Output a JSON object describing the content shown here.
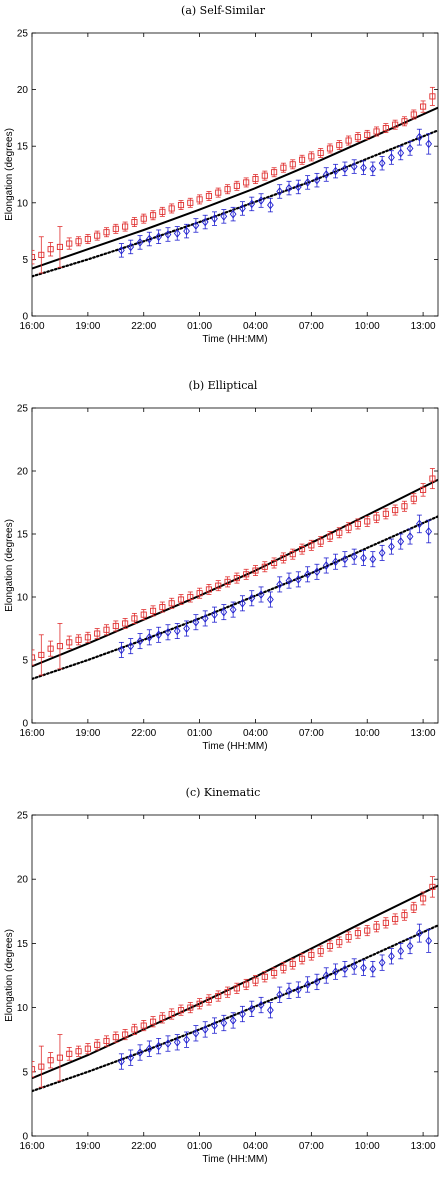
{
  "chart_data": [
    {
      "type": "scatter",
      "title": "(a) Self-Similar",
      "xlabel": "Time (HH:MM)",
      "ylabel": "Elongation (degrees)",
      "x_tick_labels": [
        "16:00",
        "19:00",
        "22:00",
        "01:00",
        "04:00",
        "07:00",
        "10:00",
        "13:00"
      ],
      "x_tick_hours": [
        0,
        3,
        6,
        9,
        12,
        15,
        18,
        21
      ],
      "y_ticks": [
        0,
        5,
        10,
        15,
        20,
        25
      ],
      "xlim_hours": [
        0,
        21.8
      ],
      "ylim": [
        0,
        25
      ],
      "grid": false,
      "colors": {
        "red": "#e03030",
        "blue": "#2020d0",
        "fit": "#000000"
      },
      "series": [
        {
          "marker": "square",
          "color": "#e03030",
          "x": [
            0,
            0.5,
            1,
            1.5,
            2,
            2.5,
            3,
            3.5,
            4,
            4.5,
            5,
            5.5,
            6,
            6.5,
            7,
            7.5,
            8,
            8.5,
            9,
            9.5,
            10,
            10.5,
            11,
            11.5,
            12,
            12.5,
            13,
            13.5,
            14,
            14.5,
            15,
            15.5,
            16,
            16.5,
            17,
            17.5,
            18,
            18.5,
            19,
            19.5,
            20,
            20.5,
            21,
            21.5
          ],
          "y": [
            5.2,
            5.4,
            5.9,
            6.1,
            6.4,
            6.6,
            6.8,
            7.1,
            7.4,
            7.7,
            7.9,
            8.3,
            8.6,
            8.9,
            9.2,
            9.5,
            9.8,
            10.0,
            10.3,
            10.6,
            10.9,
            11.2,
            11.5,
            11.8,
            12.1,
            12.4,
            12.7,
            13.1,
            13.4,
            13.8,
            14.1,
            14.4,
            14.8,
            15.1,
            15.5,
            15.8,
            16.0,
            16.3,
            16.6,
            16.9,
            17.2,
            17.8,
            18.5,
            19.4
          ],
          "err": [
            0.6,
            1.6,
            0.6,
            1.8,
            0.5,
            0.4,
            0.4,
            0.4,
            0.4,
            0.4,
            0.4,
            0.4,
            0.4,
            0.4,
            0.4,
            0.4,
            0.4,
            0.4,
            0.4,
            0.4,
            0.4,
            0.4,
            0.4,
            0.4,
            0.4,
            0.4,
            0.4,
            0.4,
            0.4,
            0.4,
            0.4,
            0.4,
            0.4,
            0.4,
            0.4,
            0.4,
            0.4,
            0.4,
            0.4,
            0.4,
            0.4,
            0.4,
            0.5,
            0.8
          ]
        },
        {
          "marker": "diamond",
          "color": "#2020d0",
          "x": [
            4.8,
            5.3,
            5.8,
            6.3,
            6.8,
            7.3,
            7.8,
            8.3,
            8.8,
            9.3,
            9.8,
            10.3,
            10.8,
            11.3,
            11.8,
            12.3,
            12.8,
            13.3,
            13.8,
            14.3,
            14.8,
            15.3,
            15.8,
            16.3,
            16.8,
            17.3,
            17.8,
            18.3,
            18.8,
            19.3,
            19.8,
            20.3,
            20.8,
            21.3
          ],
          "y": [
            5.8,
            6.1,
            6.5,
            6.8,
            7.0,
            7.2,
            7.3,
            7.5,
            8.0,
            8.3,
            8.6,
            8.8,
            9.0,
            9.5,
            9.9,
            10.2,
            9.8,
            11.0,
            11.3,
            11.4,
            11.8,
            12.0,
            12.5,
            12.8,
            13.0,
            13.2,
            13.1,
            13.0,
            13.5,
            14.0,
            14.4,
            14.8,
            15.8,
            15.2
          ],
          "err": [
            0.6,
            0.6,
            0.6,
            0.6,
            0.6,
            0.6,
            0.6,
            0.6,
            0.6,
            0.6,
            0.6,
            0.6,
            0.6,
            0.6,
            0.6,
            0.6,
            0.6,
            0.6,
            0.6,
            0.6,
            0.6,
            0.6,
            0.6,
            0.6,
            0.6,
            0.6,
            0.6,
            0.6,
            0.6,
            0.6,
            0.6,
            0.6,
            0.7,
            0.9
          ]
        }
      ],
      "fits": [
        {
          "style": "solid",
          "x": [
            0,
            3,
            6,
            9,
            12,
            15,
            18,
            21.8
          ],
          "y": [
            4.2,
            5.9,
            7.6,
            9.4,
            11.3,
            13.4,
            15.6,
            18.4
          ]
        },
        {
          "style": "dotted",
          "x": [
            0,
            3,
            6,
            9,
            12,
            15,
            18,
            21.8
          ],
          "y": [
            3.5,
            5.0,
            6.6,
            8.3,
            10.1,
            11.9,
            13.9,
            16.4
          ]
        }
      ]
    },
    {
      "type": "scatter",
      "title": "(b) Elliptical",
      "xlabel": "Time (HH:MM)",
      "ylabel": "Elongation (degrees)",
      "x_tick_labels": [
        "16:00",
        "19:00",
        "22:00",
        "01:00",
        "04:00",
        "07:00",
        "10:00",
        "13:00"
      ],
      "x_tick_hours": [
        0,
        3,
        6,
        9,
        12,
        15,
        18,
        21
      ],
      "y_ticks": [
        0,
        5,
        10,
        15,
        20,
        25
      ],
      "xlim_hours": [
        0,
        21.8
      ],
      "ylim": [
        0,
        25
      ],
      "grid": false,
      "colors": {
        "red": "#e03030",
        "blue": "#2020d0",
        "fit": "#000000"
      },
      "series": [
        {
          "marker": "square",
          "color": "#e03030",
          "x": [
            0,
            0.5,
            1,
            1.5,
            2,
            2.5,
            3,
            3.5,
            4,
            4.5,
            5,
            5.5,
            6,
            6.5,
            7,
            7.5,
            8,
            8.5,
            9,
            9.5,
            10,
            10.5,
            11,
            11.5,
            12,
            12.5,
            13,
            13.5,
            14,
            14.5,
            15,
            15.5,
            16,
            16.5,
            17,
            17.5,
            18,
            18.5,
            19,
            19.5,
            20,
            20.5,
            21,
            21.5
          ],
          "y": [
            5.2,
            5.4,
            5.9,
            6.1,
            6.4,
            6.6,
            6.8,
            7.1,
            7.4,
            7.7,
            7.9,
            8.3,
            8.6,
            8.9,
            9.2,
            9.5,
            9.8,
            10.0,
            10.3,
            10.6,
            10.9,
            11.2,
            11.5,
            11.8,
            12.1,
            12.4,
            12.7,
            13.1,
            13.4,
            13.8,
            14.1,
            14.4,
            14.8,
            15.1,
            15.5,
            15.8,
            16.0,
            16.3,
            16.6,
            16.9,
            17.2,
            17.8,
            18.5,
            19.4
          ],
          "err": [
            0.6,
            1.6,
            0.6,
            1.8,
            0.5,
            0.4,
            0.4,
            0.4,
            0.4,
            0.4,
            0.4,
            0.4,
            0.4,
            0.4,
            0.4,
            0.4,
            0.4,
            0.4,
            0.4,
            0.4,
            0.4,
            0.4,
            0.4,
            0.4,
            0.4,
            0.4,
            0.4,
            0.4,
            0.4,
            0.4,
            0.4,
            0.4,
            0.4,
            0.4,
            0.4,
            0.4,
            0.4,
            0.4,
            0.4,
            0.4,
            0.4,
            0.4,
            0.5,
            0.8
          ]
        },
        {
          "marker": "diamond",
          "color": "#2020d0",
          "x": [
            4.8,
            5.3,
            5.8,
            6.3,
            6.8,
            7.3,
            7.8,
            8.3,
            8.8,
            9.3,
            9.8,
            10.3,
            10.8,
            11.3,
            11.8,
            12.3,
            12.8,
            13.3,
            13.8,
            14.3,
            14.8,
            15.3,
            15.8,
            16.3,
            16.8,
            17.3,
            17.8,
            18.3,
            18.8,
            19.3,
            19.8,
            20.3,
            20.8,
            21.3
          ],
          "y": [
            5.8,
            6.1,
            6.5,
            6.8,
            7.0,
            7.2,
            7.3,
            7.5,
            8.0,
            8.3,
            8.6,
            8.8,
            9.0,
            9.5,
            9.9,
            10.2,
            9.8,
            11.0,
            11.3,
            11.4,
            11.8,
            12.0,
            12.5,
            12.8,
            13.0,
            13.2,
            13.1,
            13.0,
            13.5,
            14.0,
            14.4,
            14.8,
            15.8,
            15.2
          ],
          "err": [
            0.6,
            0.6,
            0.6,
            0.6,
            0.6,
            0.6,
            0.6,
            0.6,
            0.6,
            0.6,
            0.6,
            0.6,
            0.6,
            0.6,
            0.6,
            0.6,
            0.6,
            0.6,
            0.6,
            0.6,
            0.6,
            0.6,
            0.6,
            0.6,
            0.6,
            0.6,
            0.6,
            0.6,
            0.6,
            0.6,
            0.6,
            0.6,
            0.7,
            0.9
          ]
        }
      ],
      "fits": [
        {
          "style": "solid",
          "x": [
            0,
            3,
            6,
            9,
            12,
            15,
            18,
            21.8
          ],
          "y": [
            4.5,
            6.3,
            8.2,
            10.1,
            12.1,
            14.3,
            16.5,
            19.3
          ]
        },
        {
          "style": "dotted",
          "x": [
            0,
            3,
            6,
            9,
            12,
            15,
            18,
            21.8
          ],
          "y": [
            3.5,
            5.0,
            6.6,
            8.3,
            10.1,
            11.9,
            13.9,
            16.4
          ]
        }
      ]
    },
    {
      "type": "scatter",
      "title": "(c) Kinematic",
      "xlabel": "Time (HH:MM)",
      "ylabel": "Elongation (degrees)",
      "x_tick_labels": [
        "16:00",
        "19:00",
        "22:00",
        "01:00",
        "04:00",
        "07:00",
        "10:00",
        "13:00"
      ],
      "x_tick_hours": [
        0,
        3,
        6,
        9,
        12,
        15,
        18,
        21
      ],
      "y_ticks": [
        0,
        5,
        10,
        15,
        20,
        25
      ],
      "xlim_hours": [
        0,
        21.8
      ],
      "ylim": [
        0,
        25
      ],
      "grid": false,
      "colors": {
        "red": "#e03030",
        "blue": "#2020d0",
        "fit": "#000000"
      },
      "series": [
        {
          "marker": "square",
          "color": "#e03030",
          "x": [
            0,
            0.5,
            1,
            1.5,
            2,
            2.5,
            3,
            3.5,
            4,
            4.5,
            5,
            5.5,
            6,
            6.5,
            7,
            7.5,
            8,
            8.5,
            9,
            9.5,
            10,
            10.5,
            11,
            11.5,
            12,
            12.5,
            13,
            13.5,
            14,
            14.5,
            15,
            15.5,
            16,
            16.5,
            17,
            17.5,
            18,
            18.5,
            19,
            19.5,
            20,
            20.5,
            21,
            21.5
          ],
          "y": [
            5.2,
            5.4,
            5.9,
            6.1,
            6.4,
            6.6,
            6.8,
            7.1,
            7.4,
            7.7,
            7.9,
            8.3,
            8.6,
            8.9,
            9.2,
            9.5,
            9.8,
            10.0,
            10.3,
            10.6,
            10.9,
            11.2,
            11.5,
            11.8,
            12.1,
            12.4,
            12.7,
            13.1,
            13.4,
            13.8,
            14.1,
            14.4,
            14.8,
            15.1,
            15.5,
            15.8,
            16.0,
            16.3,
            16.6,
            16.9,
            17.2,
            17.8,
            18.5,
            19.4
          ],
          "err": [
            0.6,
            1.6,
            0.6,
            1.8,
            0.5,
            0.4,
            0.4,
            0.4,
            0.4,
            0.4,
            0.4,
            0.4,
            0.4,
            0.4,
            0.4,
            0.4,
            0.4,
            0.4,
            0.4,
            0.4,
            0.4,
            0.4,
            0.4,
            0.4,
            0.4,
            0.4,
            0.4,
            0.4,
            0.4,
            0.4,
            0.4,
            0.4,
            0.4,
            0.4,
            0.4,
            0.4,
            0.4,
            0.4,
            0.4,
            0.4,
            0.4,
            0.4,
            0.5,
            0.8
          ]
        },
        {
          "marker": "diamond",
          "color": "#2020d0",
          "x": [
            4.8,
            5.3,
            5.8,
            6.3,
            6.8,
            7.3,
            7.8,
            8.3,
            8.8,
            9.3,
            9.8,
            10.3,
            10.8,
            11.3,
            11.8,
            12.3,
            12.8,
            13.3,
            13.8,
            14.3,
            14.8,
            15.3,
            15.8,
            16.3,
            16.8,
            17.3,
            17.8,
            18.3,
            18.8,
            19.3,
            19.8,
            20.3,
            20.8,
            21.3
          ],
          "y": [
            5.8,
            6.1,
            6.5,
            6.8,
            7.0,
            7.2,
            7.3,
            7.5,
            8.0,
            8.3,
            8.6,
            8.8,
            9.0,
            9.5,
            9.9,
            10.2,
            9.8,
            11.0,
            11.3,
            11.4,
            11.8,
            12.0,
            12.5,
            12.8,
            13.0,
            13.2,
            13.1,
            13.0,
            13.5,
            14.0,
            14.4,
            14.8,
            15.8,
            15.2
          ],
          "err": [
            0.6,
            0.6,
            0.6,
            0.6,
            0.6,
            0.6,
            0.6,
            0.6,
            0.6,
            0.6,
            0.6,
            0.6,
            0.6,
            0.6,
            0.6,
            0.6,
            0.6,
            0.6,
            0.6,
            0.6,
            0.6,
            0.6,
            0.6,
            0.6,
            0.6,
            0.6,
            0.6,
            0.6,
            0.6,
            0.6,
            0.6,
            0.6,
            0.7,
            0.9
          ]
        }
      ],
      "fits": [
        {
          "style": "solid",
          "x": [
            0,
            3,
            6,
            9,
            12,
            15,
            18,
            21.8
          ],
          "y": [
            4.5,
            6.3,
            8.3,
            10.3,
            12.4,
            14.6,
            16.8,
            19.5
          ]
        },
        {
          "style": "dotted",
          "x": [
            0,
            3,
            6,
            9,
            12,
            15,
            18,
            21.8
          ],
          "y": [
            3.5,
            5.0,
            6.6,
            8.3,
            10.1,
            11.9,
            13.9,
            16.4
          ]
        }
      ]
    }
  ]
}
